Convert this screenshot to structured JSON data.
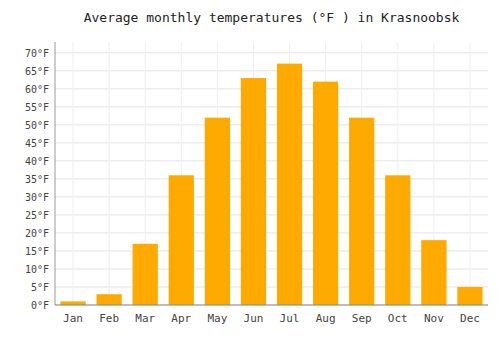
{
  "chart_data": {
    "type": "bar",
    "title": "Average monthly temperatures (°F ) in Krasnoobsk",
    "categories": [
      "Jan",
      "Feb",
      "Mar",
      "Apr",
      "May",
      "Jun",
      "Jul",
      "Aug",
      "Sep",
      "Oct",
      "Nov",
      "Dec"
    ],
    "values": [
      1,
      3,
      17,
      36,
      52,
      63,
      67,
      62,
      52,
      36,
      18,
      5
    ],
    "color": "#FFAA00",
    "ylim": [
      0,
      73
    ],
    "yticks": [
      {
        "value": 0,
        "label": "0°F"
      },
      {
        "value": 5,
        "label": "5°F"
      },
      {
        "value": 10,
        "label": "10°F"
      },
      {
        "value": 15,
        "label": "15°F"
      },
      {
        "value": 20,
        "label": "20°F"
      },
      {
        "value": 25,
        "label": "25°F"
      },
      {
        "value": 30,
        "label": "30°F"
      },
      {
        "value": 35,
        "label": "35°F"
      },
      {
        "value": 40,
        "label": "40°F"
      },
      {
        "value": 45,
        "label": "45°F"
      },
      {
        "value": 50,
        "label": "50°F"
      },
      {
        "value": 55,
        "label": "55°F"
      },
      {
        "value": 60,
        "label": "60°F"
      },
      {
        "value": 65,
        "label": "65°F"
      },
      {
        "value": 70,
        "label": "70°F"
      }
    ],
    "grid": true
  }
}
